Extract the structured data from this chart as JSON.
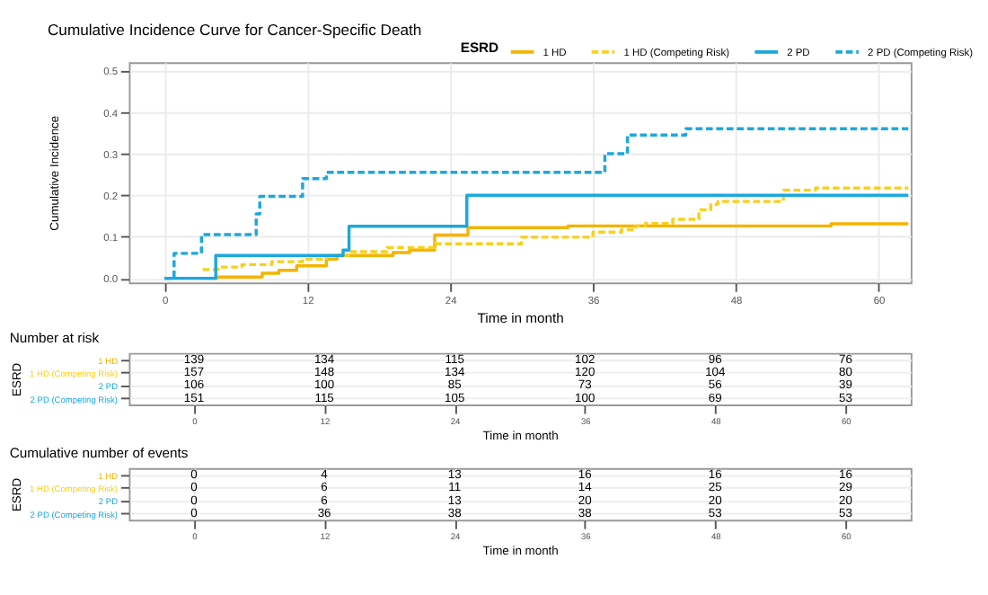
{
  "chart_data": [
    {
      "type": "step",
      "title": "Cumulative Incidence Curve for Cancer-Specific Death",
      "xlabel": "Time in month",
      "ylabel": "Cumulative Incidence",
      "legend_title": "ESRD",
      "legend": "top right",
      "grid": true,
      "xlim": [
        -3,
        62.7
      ],
      "xticks": [
        0,
        12,
        24,
        36,
        48,
        60
      ],
      "ylim": [
        -0.01,
        0.52
      ],
      "yticks": [
        {
          "value": 0,
          "label": "0.0"
        },
        {
          "value": 0.1,
          "label": "0.1"
        },
        {
          "value": 0.2,
          "label": "0.2"
        },
        {
          "value": 0.3,
          "label": "0.3"
        },
        {
          "value": 0.4,
          "label": "0.4"
        },
        {
          "value": 0.5,
          "label": "0.5"
        }
      ],
      "series": [
        {
          "name": "1 HD",
          "color": "#f4b400",
          "line_style": "solid",
          "x": [
            3.2,
            4.4,
            8.2,
            9.6,
            11.1,
            13.6,
            14.5,
            19.2,
            20.6,
            22.7,
            25.5,
            33.9,
            56,
            62.5
          ],
          "values": [
            0,
            0.003,
            0.012,
            0.019,
            0.03,
            0.046,
            0.055,
            0.062,
            0.068,
            0.104,
            0.122,
            0.126,
            0.131,
            0.131
          ]
        },
        {
          "name": "1 HD (Competing Risk)",
          "color": "#f9d01c",
          "line_style": "dashed",
          "x": [
            3.2,
            4.5,
            6.5,
            9,
            11.6,
            13.6,
            15.7,
            18.7,
            22.7,
            30,
            36,
            38.4,
            39.6,
            40.4,
            42.7,
            44.9,
            45.9,
            46.5,
            52,
            54.7,
            62.5
          ],
          "values": [
            0.021,
            0.027,
            0.033,
            0.04,
            0.046,
            0.055,
            0.064,
            0.074,
            0.083,
            0.099,
            0.111,
            0.117,
            0.126,
            0.132,
            0.142,
            0.165,
            0.178,
            0.185,
            0.212,
            0.217,
            0.217
          ]
        },
        {
          "name": "2 PD",
          "color": "#1ba8de",
          "line_style": "solid",
          "x": [
            0,
            4.3,
            15,
            15.5,
            25.4,
            62.5
          ],
          "values": [
            0,
            0.055,
            0.068,
            0.125,
            0.2,
            0.2
          ]
        },
        {
          "name": "2 PD (Competing Risk)",
          "color": "#1ba8de",
          "line_style": "dashed",
          "x": [
            0,
            0.8,
            3.1,
            7.7,
            8,
            11.6,
            13.6,
            37,
            38.9,
            43.8,
            62.5
          ],
          "values": [
            0,
            0.06,
            0.105,
            0.155,
            0.197,
            0.24,
            0.255,
            0.3,
            0.345,
            0.36,
            0.36
          ]
        }
      ]
    },
    {
      "type": "heatmap",
      "title": "Number at risk",
      "xlabel": "Time in month",
      "ylabel": "ESRD",
      "grid": true,
      "data_labels": true,
      "categories": [
        "0",
        "12",
        "24",
        "36",
        "48",
        "60"
      ],
      "y_categories": [
        "1 HD",
        "1 HD (Competing Risk)",
        "2 PD",
        "2 PD (Competing Risk)"
      ],
      "cells": [
        [
          139,
          134,
          115,
          102,
          96,
          76
        ],
        [
          157,
          148,
          134,
          120,
          104,
          80
        ],
        [
          106,
          100,
          85,
          73,
          56,
          39
        ],
        [
          151,
          115,
          105,
          100,
          69,
          53
        ]
      ]
    },
    {
      "type": "heatmap",
      "title": "Cumulative number of events",
      "xlabel": "Time in month",
      "ylabel": "ESRD",
      "grid": true,
      "data_labels": true,
      "categories": [
        "0",
        "12",
        "24",
        "36",
        "48",
        "60"
      ],
      "y_categories": [
        "1 HD",
        "1 HD (Competing Risk)",
        "2 PD",
        "2 PD (Competing Risk)"
      ],
      "cells": [
        [
          0,
          4,
          13,
          16,
          16,
          16
        ],
        [
          0,
          6,
          11,
          14,
          25,
          29
        ],
        [
          0,
          6,
          13,
          20,
          20,
          20
        ],
        [
          0,
          36,
          38,
          38,
          53,
          53
        ]
      ]
    }
  ]
}
